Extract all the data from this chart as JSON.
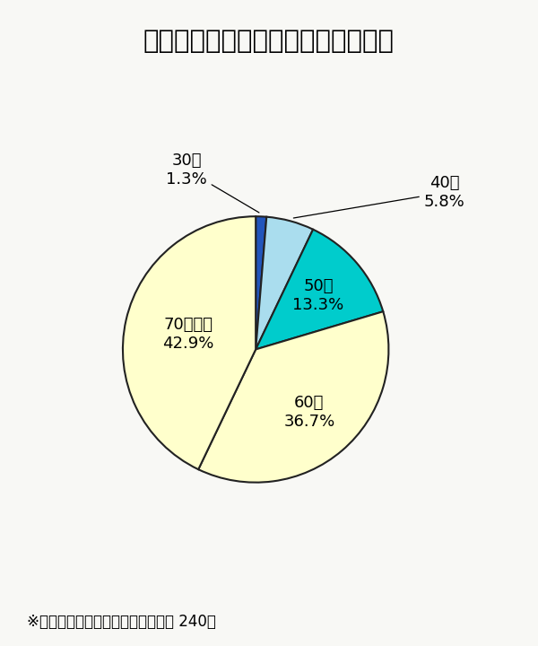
{
  "title": "代表者年齢別「休廃業・解散」企業",
  "slices": [
    {
      "label": "30代",
      "pct": 1.3,
      "color": "#2255bb"
    },
    {
      "label": "40代",
      "pct": 5.8,
      "color": "#aaddee"
    },
    {
      "label": "50代",
      "pct": 13.3,
      "color": "#00cccc"
    },
    {
      "label": "60代",
      "pct": 36.7,
      "color": "#ffffcc"
    },
    {
      "label": "70才以上",
      "pct": 42.9,
      "color": "#ffffcc"
    }
  ],
  "footnote": "※対象は、代表者の年齢が判明した 240社",
  "bg_color": "#f8f8f5",
  "title_fontsize": 21,
  "label_fontsize": 13,
  "footnote_fontsize": 12,
  "wedge_edgecolor": "#222222",
  "wedge_linewidth": 1.5
}
